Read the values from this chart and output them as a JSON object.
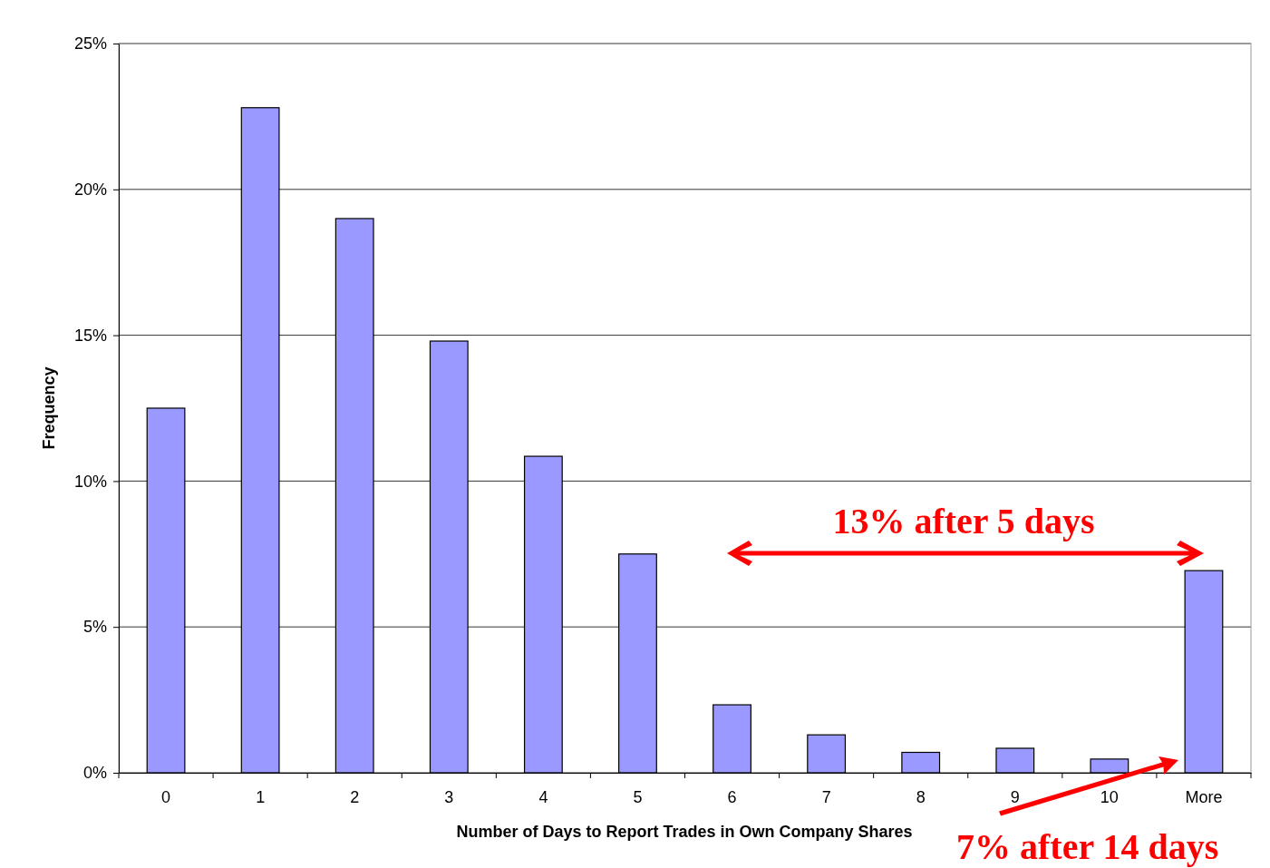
{
  "chart_data": {
    "type": "bar",
    "xlabel": "Number of Days to Report Trades in Own Company Shares",
    "ylabel": "Frequency",
    "categories": [
      "0",
      "1",
      "2",
      "3",
      "4",
      "5",
      "6",
      "7",
      "8",
      "9",
      "10",
      "More"
    ],
    "values": [
      12.5,
      22.8,
      19.0,
      14.8,
      10.85,
      7.5,
      2.33,
      1.3,
      0.7,
      0.84,
      0.47,
      6.93
    ],
    "color": "#9999ff",
    "ylim": [
      0,
      25
    ],
    "yticks": [
      {
        "value": 0,
        "label": "0%"
      },
      {
        "value": 5,
        "label": "5%"
      },
      {
        "value": 10,
        "label": "10%"
      },
      {
        "value": 15,
        "label": "15%"
      },
      {
        "value": 20,
        "label": "20%"
      },
      {
        "value": 25,
        "label": "25%"
      }
    ],
    "grid": "y",
    "annotations": [
      "13% after 5 days",
      "7% after 14 days"
    ]
  }
}
